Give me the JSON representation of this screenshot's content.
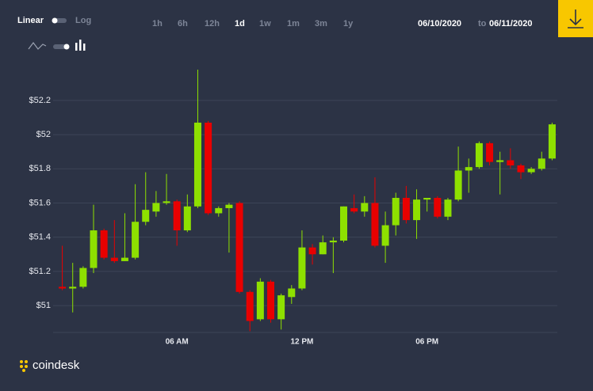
{
  "controls": {
    "scale_options": [
      "Linear",
      "Log"
    ],
    "active_scale": 0,
    "ranges": [
      "1h",
      "6h",
      "12h",
      "1d",
      "1w",
      "1m",
      "3m",
      "1y"
    ],
    "active_range": 3,
    "date_from": "06/10/2020",
    "date_separator": "to",
    "date_to": "06/11/2020"
  },
  "brand": "coindesk",
  "chart_data": {
    "type": "candlestick",
    "categories": [
      null,
      null,
      null,
      null,
      null,
      null,
      null,
      null,
      null,
      null,
      null,
      "06 AM",
      null,
      null,
      null,
      null,
      null,
      null,
      null,
      null,
      null,
      null,
      null,
      "12 PM",
      null,
      null,
      null,
      null,
      null,
      null,
      null,
      null,
      null,
      null,
      null,
      "06 PM",
      null,
      null,
      null,
      null,
      null,
      null,
      null,
      null,
      null,
      null,
      null,
      null
    ],
    "open": [
      51.11,
      51.1,
      51.11,
      51.22,
      51.44,
      51.28,
      51.26,
      51.28,
      51.49,
      51.55,
      51.6,
      51.61,
      51.44,
      51.58,
      52.07,
      51.54,
      51.57,
      51.6,
      51.08,
      50.92,
      51.14,
      50.92,
      51.05,
      51.1,
      51.34,
      51.3,
      51.37,
      51.38,
      51.57,
      51.55,
      51.6,
      51.35,
      51.47,
      51.63,
      51.5,
      51.62,
      51.63,
      51.52,
      51.62,
      51.79,
      51.81,
      51.95,
      51.84,
      51.85,
      51.82,
      51.78,
      51.8,
      51.86
    ],
    "high": [
      51.35,
      51.25,
      51.23,
      51.59,
      51.45,
      51.5,
      51.54,
      51.71,
      51.78,
      51.67,
      51.77,
      51.62,
      51.65,
      52.38,
      52.08,
      51.58,
      51.6,
      51.61,
      51.09,
      51.16,
      51.15,
      51.07,
      51.12,
      51.44,
      51.36,
      51.41,
      51.4,
      51.58,
      51.65,
      51.64,
      51.75,
      51.55,
      51.66,
      51.7,
      51.68,
      51.63,
      51.64,
      51.63,
      51.93,
      51.86,
      51.96,
      51.96,
      51.9,
      51.92,
      51.83,
      51.81,
      51.9,
      52.07
    ],
    "low": [
      51.09,
      50.96,
      51.1,
      51.19,
      51.27,
      51.25,
      51.26,
      51.27,
      51.47,
      51.52,
      51.59,
      51.35,
      51.43,
      51.57,
      51.53,
      51.52,
      51.31,
      51.07,
      50.85,
      50.91,
      50.9,
      50.86,
      51.01,
      51.09,
      51.24,
      51.3,
      51.19,
      51.37,
      51.54,
      51.52,
      51.34,
      51.25,
      51.41,
      51.48,
      51.39,
      51.55,
      51.51,
      51.5,
      51.61,
      51.66,
      51.8,
      51.82,
      51.65,
      51.8,
      51.74,
      51.77,
      51.79,
      51.85
    ],
    "close": [
      51.1,
      51.11,
      51.22,
      51.44,
      51.28,
      51.26,
      51.28,
      51.49,
      51.56,
      51.6,
      51.61,
      51.44,
      51.58,
      52.07,
      51.54,
      51.57,
      51.59,
      51.08,
      50.91,
      51.14,
      50.92,
      51.06,
      51.1,
      51.34,
      51.3,
      51.37,
      51.38,
      51.58,
      51.55,
      51.6,
      51.35,
      51.47,
      51.63,
      51.5,
      51.62,
      51.63,
      51.52,
      51.62,
      51.79,
      51.81,
      51.95,
      51.84,
      51.85,
      51.82,
      51.78,
      51.8,
      51.86,
      52.06
    ],
    "up_color": "#8ee000",
    "down_color": "#e80000",
    "ylim": [
      50.843,
      52.417
    ],
    "yticks": [
      {
        "value": 51,
        "label": "$51"
      },
      {
        "value": 51.2,
        "label": "$51.2"
      },
      {
        "value": 51.4,
        "label": "$51.4"
      },
      {
        "value": 51.6,
        "label": "$51.6"
      },
      {
        "value": 51.8,
        "label": "$51.8"
      },
      {
        "value": 52,
        "label": "$52"
      },
      {
        "value": 52.2,
        "label": "$52.2"
      }
    ],
    "grid": true
  }
}
